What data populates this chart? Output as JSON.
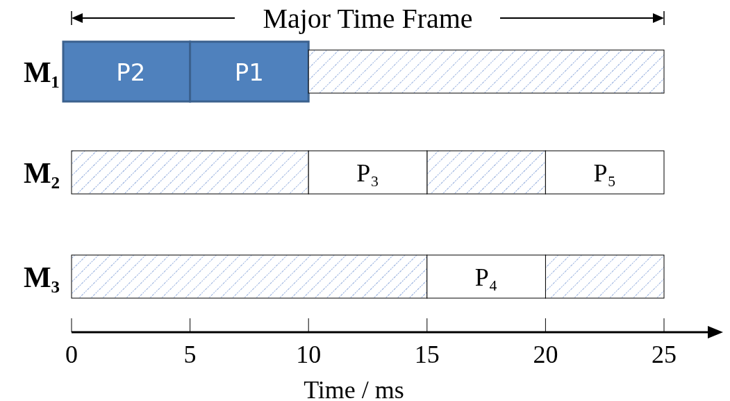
{
  "chart_data": {
    "type": "bar",
    "orientation": "horizontal",
    "title": "Major Time Frame",
    "xlabel": "Time / ms",
    "categories": [
      "M₁",
      "M₂",
      "M₃"
    ],
    "series": [
      {
        "color": "#4f81bd",
        "base": [
          0,
          null,
          null
        ],
        "values": [
          5,
          null,
          null
        ],
        "value_labels": [
          "P2",
          null,
          null
        ]
      },
      {
        "color": "#4f81bd",
        "base": [
          5,
          null,
          null
        ],
        "values": [
          5,
          null,
          null
        ],
        "value_labels": [
          "P1",
          null,
          null
        ]
      },
      {
        "color": "#8faadc",
        "base": [
          10,
          0,
          0
        ],
        "values": [
          15,
          10,
          15
        ]
      },
      {
        "color": "#8faadc",
        "base": [
          null,
          15,
          20
        ],
        "values": [
          null,
          5,
          5
        ]
      },
      {
        "color": "#ffffff",
        "base": [
          null,
          10,
          15
        ],
        "values": [
          null,
          5,
          5
        ],
        "value_labels": [
          null,
          "P₃",
          "P₄"
        ]
      },
      {
        "color": "#ffffff",
        "base": [
          null,
          20,
          null
        ],
        "values": [
          null,
          5,
          null
        ],
        "value_labels": [
          null,
          "P₅",
          null
        ]
      }
    ],
    "xlim": [
      0,
      25
    ],
    "xticks": [
      0,
      5,
      10,
      15,
      20,
      25
    ]
  }
}
